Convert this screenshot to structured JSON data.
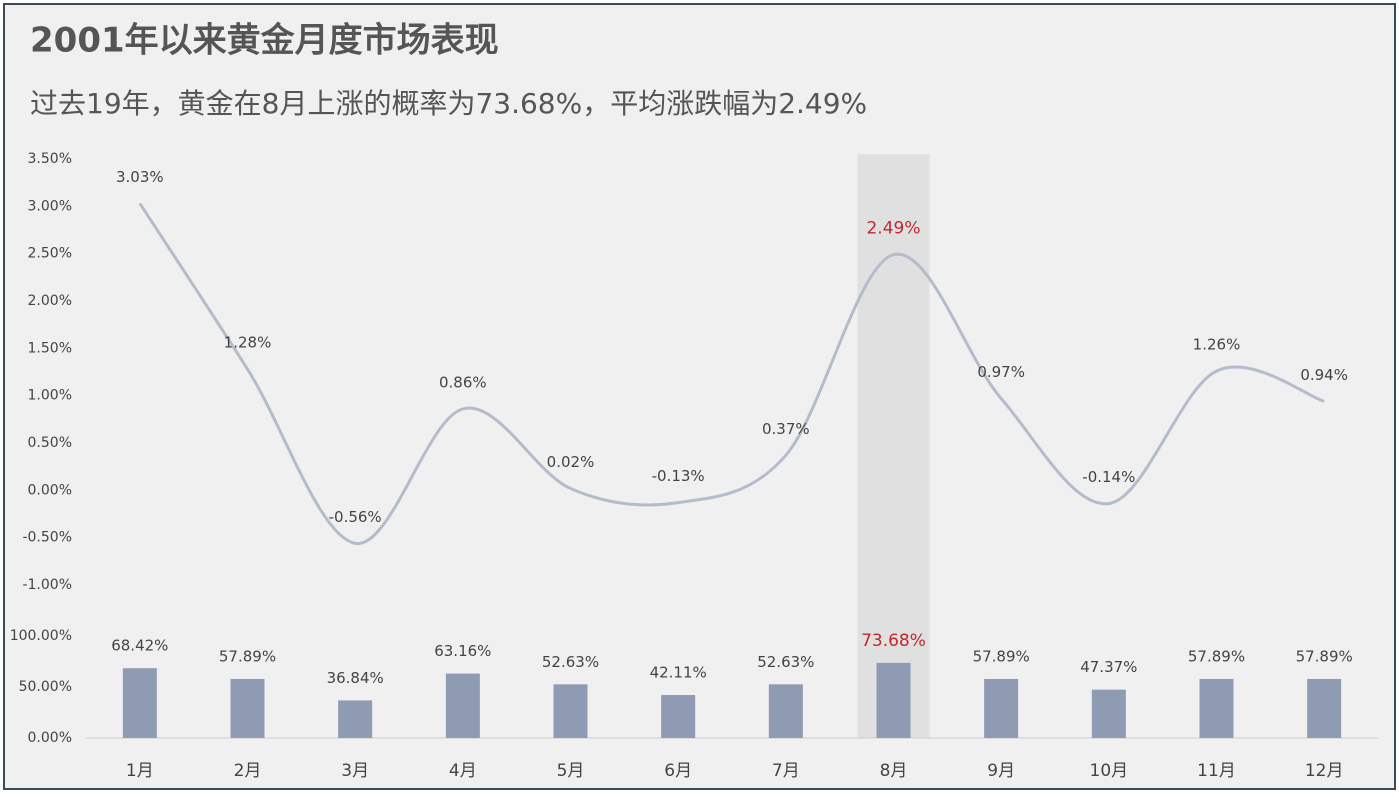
{
  "chart_data": [
    {
      "type": "line",
      "title": "2001年以来黄金月度市场表现",
      "subtitle": "过去19年，黄金在8月上涨的概率为73.68%，平均涨跌幅为2.49%",
      "values": [
        3.03,
        1.28,
        -0.56,
        0.86,
        0.02,
        -0.13,
        0.37,
        2.49,
        0.97,
        -0.14,
        1.26,
        0.94
      ],
      "value_labels": [
        "3.03%",
        "1.28%",
        "-0.56%",
        "0.86%",
        "0.02%",
        "-0.13%",
        "0.37%",
        "2.49%",
        "0.97%",
        "-0.14%",
        "1.26%",
        "0.94%"
      ],
      "color": "#b4bccb",
      "ylim": [
        -1,
        3.5
      ],
      "yticks": [
        {
          "value": -1,
          "label": "-1.00%"
        },
        {
          "value": -0.5,
          "label": "-0.50%"
        },
        {
          "value": 0,
          "label": "0.00%"
        },
        {
          "value": 0.5,
          "label": "0.50%"
        },
        {
          "value": 1,
          "label": "1.00%"
        },
        {
          "value": 1.5,
          "label": "1.50%"
        },
        {
          "value": 2,
          "label": "2.00%"
        },
        {
          "value": 2.5,
          "label": "2.50%"
        },
        {
          "value": 3,
          "label": "3.00%"
        },
        {
          "value": 3.5,
          "label": "3.50%"
        }
      ],
      "highlight": 7,
      "highlight_color": "#c0272d"
    },
    {
      "type": "bar",
      "categories": [
        "1月",
        "2月",
        "3月",
        "4月",
        "5月",
        "6月",
        "7月",
        "8月",
        "9月",
        "10月",
        "11月",
        "12月"
      ],
      "values": [
        68.42,
        57.89,
        36.84,
        63.16,
        52.63,
        42.11,
        52.63,
        73.68,
        57.89,
        47.37,
        57.89,
        57.89
      ],
      "value_labels": [
        "68.42%",
        "57.89%",
        "36.84%",
        "63.16%",
        "52.63%",
        "42.11%",
        "52.63%",
        "73.68%",
        "57.89%",
        "47.37%",
        "57.89%",
        "57.89%"
      ],
      "color": "#8e9bb3",
      "ylim": [
        0,
        100
      ],
      "yticks": [
        {
          "value": 0,
          "label": "0.00%"
        },
        {
          "value": 50,
          "label": "50.00%"
        },
        {
          "value": 100,
          "label": "100.00%"
        }
      ],
      "highlight": 7,
      "highlight_color": "#c0272d"
    }
  ]
}
